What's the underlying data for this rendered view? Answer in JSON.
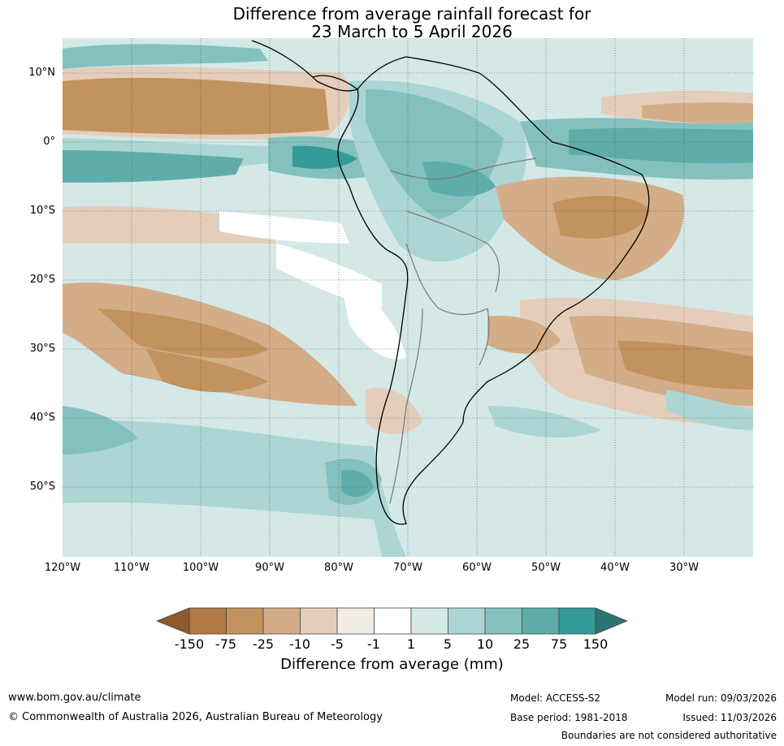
{
  "title_line1": "Difference from average rainfall forecast for",
  "title_line2": "23 March to 5 April 2026",
  "lat_labels": [
    "10°N",
    "0°",
    "10°S",
    "20°S",
    "30°S",
    "40°S",
    "50°S"
  ],
  "lon_labels": [
    "120°W",
    "110°W",
    "100°W",
    "90°W",
    "80°W",
    "70°W",
    "60°W",
    "50°W",
    "40°W",
    "30°W"
  ],
  "colorbar": {
    "labels": [
      "-150",
      "-75",
      "-25",
      "-10",
      "-5",
      "-1",
      "1",
      "5",
      "10",
      "25",
      "75",
      "150"
    ],
    "colors": [
      "#8f5a2c",
      "#b07a44",
      "#c2925f",
      "#d3ad88",
      "#e4cebb",
      "#f2ece6",
      "#ffffff",
      "#d4e9e7",
      "#acd6d4",
      "#84c1be",
      "#5fadaa",
      "#359b98",
      "#2a7573"
    ],
    "title": "Difference from average (mm)"
  },
  "footer": {
    "url": "www.bom.gov.au/climate",
    "copyright": "© Commonwealth of Australia 2026, Australian Bureau of Meteorology",
    "model": "Model: ACCESS-S2",
    "model_run": "Model run: 09/03/2026",
    "base_period": "Base period: 1981-2018",
    "issued": "Issued: 11/03/2026",
    "disclaimer": "Boundaries are not considered authoritative"
  }
}
